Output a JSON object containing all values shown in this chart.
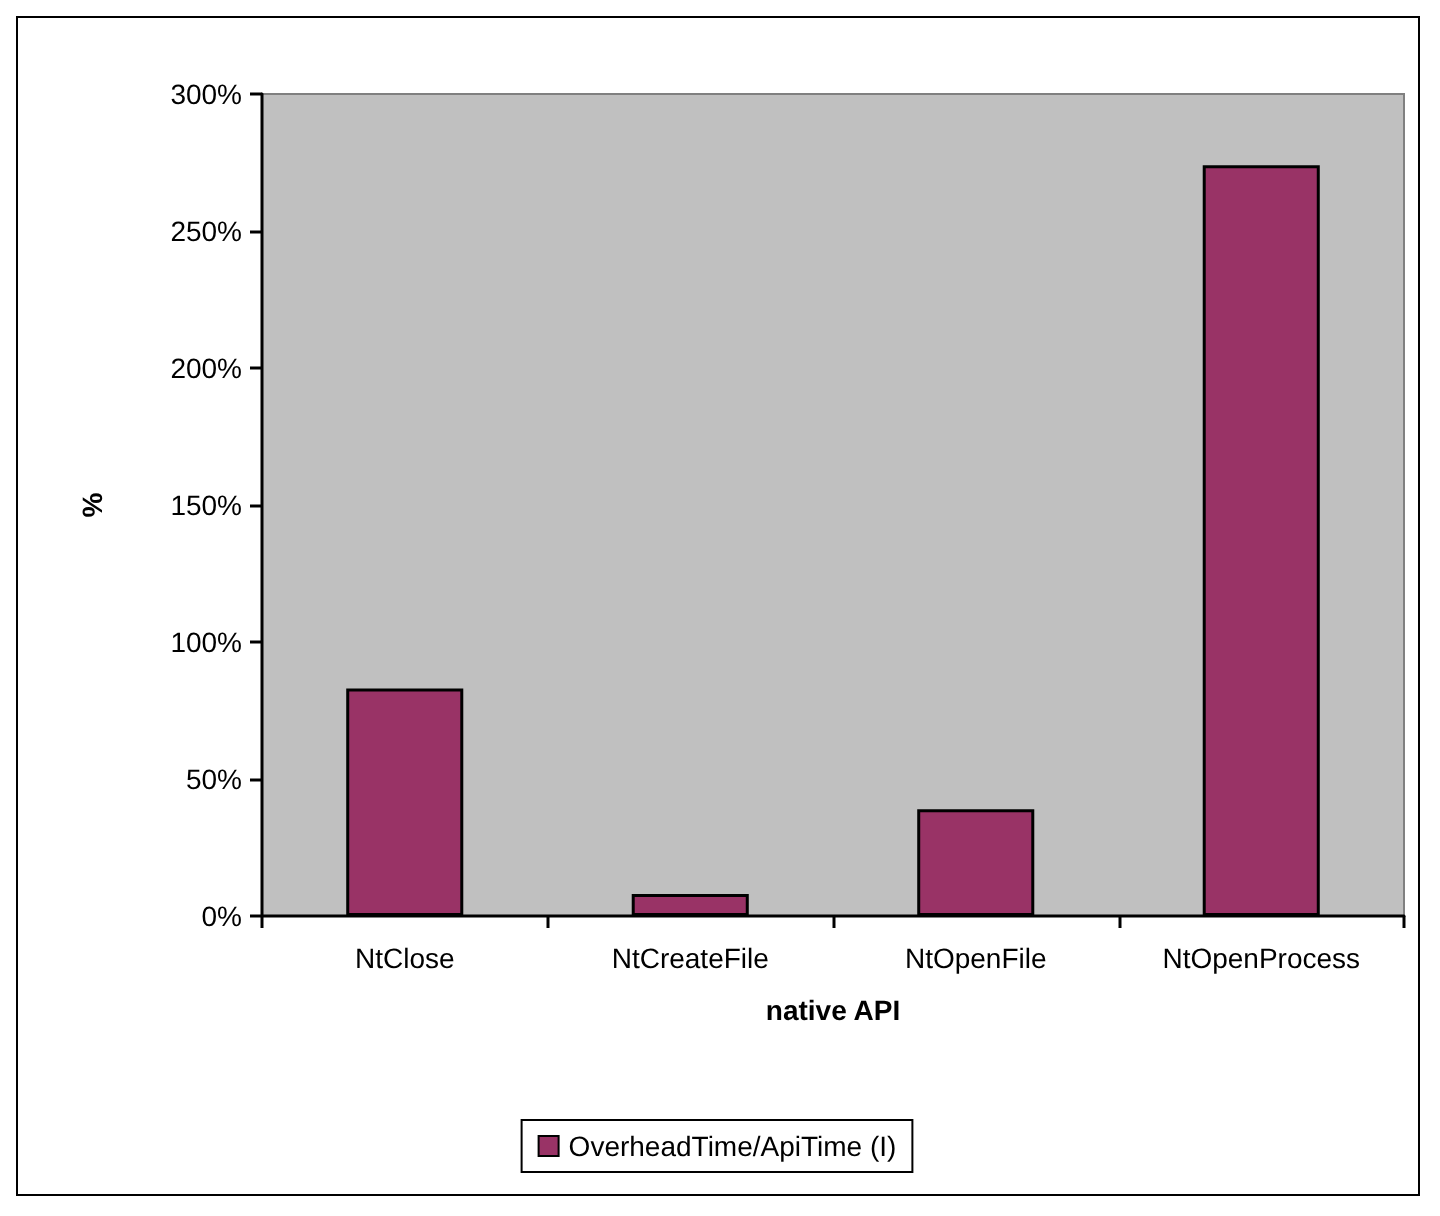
{
  "chart_data": {
    "type": "bar",
    "xlabel": "native API",
    "ylabel": "%",
    "categories": [
      "NtClose",
      "NtCreateFile",
      "NtOpenFile",
      "NtOpenProcess"
    ],
    "series": [
      {
        "name": "OverheadTime/ApiTime (I)",
        "color": "#993366",
        "values": [
          83,
          8,
          39,
          274
        ]
      }
    ],
    "ylim": [
      0,
      300
    ],
    "yticks": [
      {
        "value": 0,
        "label": "0%"
      },
      {
        "value": 50,
        "label": "50%"
      },
      {
        "value": 100,
        "label": "100%"
      },
      {
        "value": 150,
        "label": "150%"
      },
      {
        "value": 200,
        "label": "200%"
      },
      {
        "value": 250,
        "label": "250%"
      },
      {
        "value": 300,
        "label": "300%"
      }
    ],
    "grid": false,
    "legend": "bottom"
  }
}
